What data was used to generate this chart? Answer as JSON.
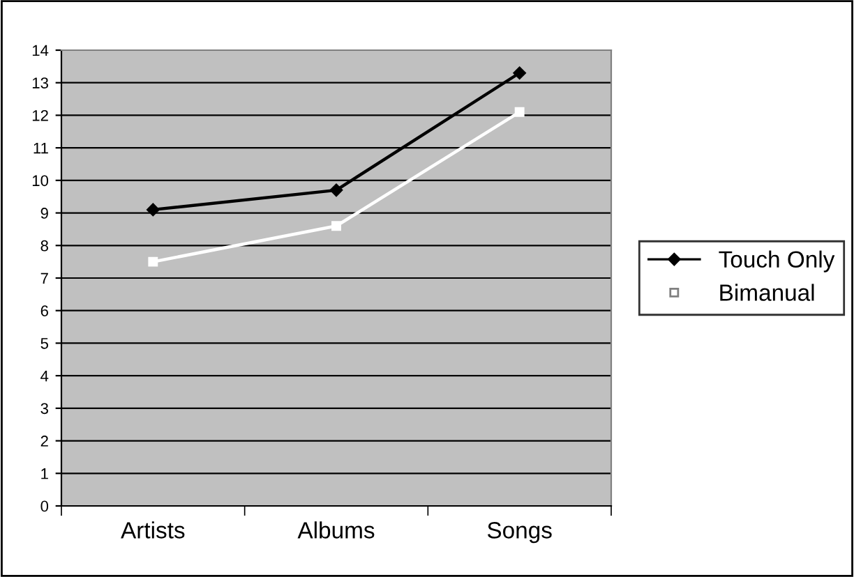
{
  "chart_data": {
    "type": "line",
    "categories": [
      "Artists",
      "Albums",
      "Songs"
    ],
    "series": [
      {
        "name": "Touch Only",
        "color": "#000000",
        "values": [
          9.1,
          9.7,
          13.3
        ],
        "marker": "diamond"
      },
      {
        "name": "Bimanual",
        "color": "#ffffff",
        "values": [
          7.5,
          8.6,
          12.1
        ],
        "marker": "square"
      }
    ],
    "ylim": [
      0,
      14
    ],
    "yticks": [
      0,
      1,
      2,
      3,
      4,
      5,
      6,
      7,
      8,
      9,
      10,
      11,
      12,
      13,
      14
    ],
    "grid": "y",
    "legend": "right",
    "line_style": "solid"
  }
}
